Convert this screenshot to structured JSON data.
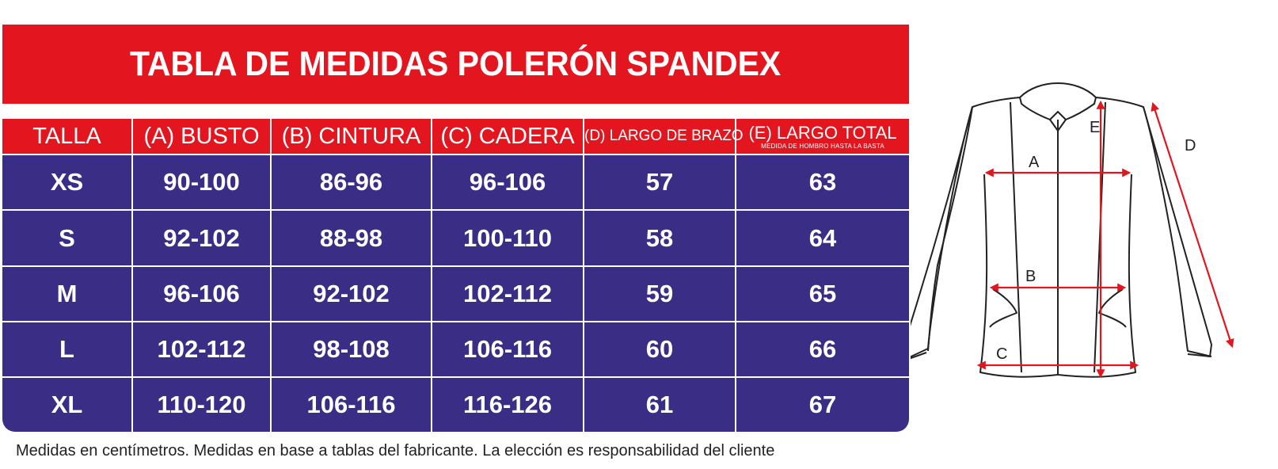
{
  "title": "TABLA DE MEDIDAS POLERÓN SPANDEX",
  "table": {
    "headers": {
      "talla": "TALLA",
      "busto": "(A) BUSTO",
      "cintura": "(B) CINTURA",
      "cadera": "(C) CADERA",
      "brazo": "(D) LARGO DE BRAZO",
      "total": "(E) LARGO TOTAL",
      "total_sub": "MEDIDA DE HOMBRO HASTA LA BASTA"
    },
    "rows": [
      [
        "XS",
        "90-100",
        "86-96",
        "96-106",
        "57",
        "63"
      ],
      [
        "S",
        "92-102",
        "88-98",
        "100-110",
        "58",
        "64"
      ],
      [
        "M",
        "96-106",
        "92-102",
        "102-112",
        "59",
        "65"
      ],
      [
        "L",
        "102-112",
        "98-108",
        "106-116",
        "60",
        "66"
      ],
      [
        "XL",
        "110-120",
        "106-116",
        "116-126",
        "61",
        "67"
      ]
    ]
  },
  "footnote": "Medidas en centímetros. Medidas en base a tablas del fabricante. La elección es responsabilidad del cliente",
  "diagram": {
    "label_a": "A",
    "label_b": "B",
    "label_c": "C",
    "label_d": "D",
    "label_e": "E"
  },
  "colors": {
    "red": "#e3161f",
    "navy": "#3a2d86",
    "measure_line": "#e3161f"
  }
}
